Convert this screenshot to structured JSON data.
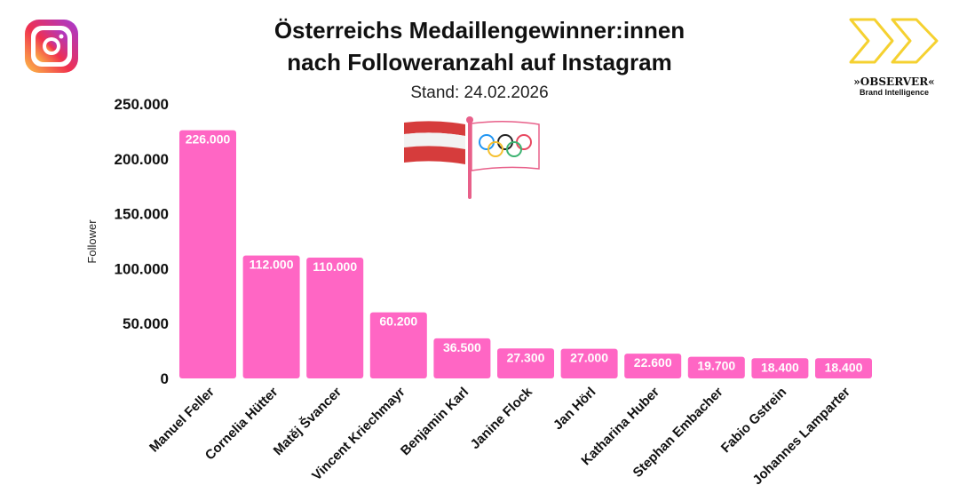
{
  "chart_data": {
    "type": "bar",
    "title": "Österreichs Medaillengewinner:innen nach Followeranzahl auf Instagram",
    "title_lines": [
      "Österreichs Medaillengewinner:innen",
      "nach Followeranzahl auf Instagram"
    ],
    "subtitle": "Stand: 24.02.2026",
    "ylabel": "Follower",
    "xlabel": "",
    "ylim": [
      0,
      250000
    ],
    "yticks": [
      0,
      50000,
      100000,
      150000,
      200000,
      250000
    ],
    "ytick_labels": [
      "0",
      "50.000",
      "100.000",
      "150.000",
      "200.000",
      "250.000"
    ],
    "grid": false,
    "categories": [
      "Manuel Feller",
      "Cornelia Hütter",
      "Matěj Švancer",
      "Vincent Kriechmayr",
      "Benjamin Karl",
      "Janine Flock",
      "Jan Hörl",
      "Katharina Huber",
      "Stephan Embacher",
      "Fabio Gstrein",
      "Johannes Lamparter"
    ],
    "values": [
      226000,
      112000,
      110000,
      60200,
      36500,
      27300,
      27000,
      22600,
      19700,
      18400,
      18400
    ],
    "data_labels": [
      "226.000",
      "112.000",
      "110.000",
      "60.200",
      "36.500",
      "27.300",
      "27.000",
      "22.600",
      "19.700",
      "18.400",
      "18.400"
    ],
    "bar_color": "#ff66c4"
  },
  "logo": {
    "name": "»OBSERVER«",
    "tagline": "Brand Intelligence",
    "color": "#f5d130"
  },
  "icons": [
    "instagram-icon",
    "austria-flag-icon",
    "olympic-flag-icon"
  ]
}
